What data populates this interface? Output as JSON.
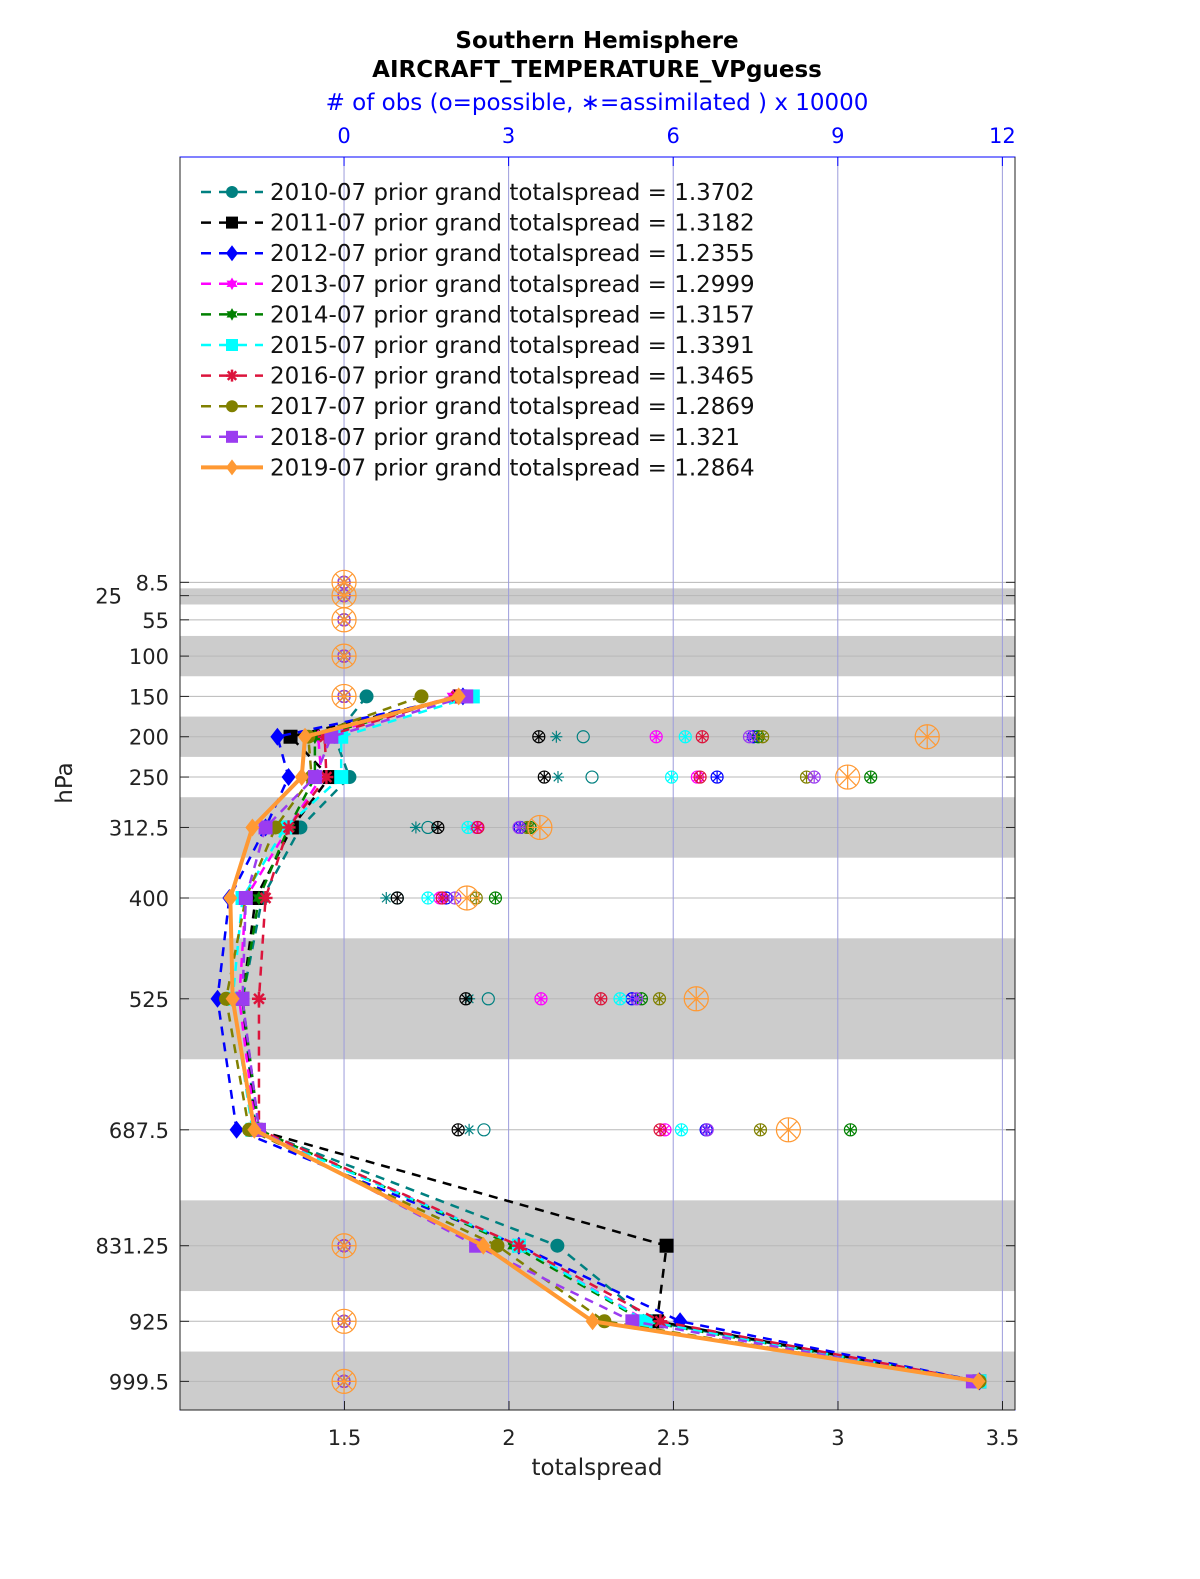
{
  "chart_data": {
    "type": "line",
    "title": "Southern Hemisphere",
    "subtitle": "AIRCRAFT_TEMPERATURE_VPguess",
    "top_axis_label": "# of obs (o=possible, ∗=assimilated ) x 10000",
    "xlabel": "totalspread",
    "ylabel": "hPa",
    "xlim": [
      1.0,
      3.538
    ],
    "top_xlim": [
      -2.99,
      12.23
    ],
    "ylim": [
      -519,
      1035
    ],
    "y_reversed": true,
    "grid": true,
    "legend_placement": "top-left",
    "x_ticks": [
      "1.5",
      "2",
      "2.5",
      "3",
      "3.5"
    ],
    "x_tick_values": [
      1.5,
      2,
      2.5,
      3,
      3.5
    ],
    "top_ticks": [
      "0",
      "3",
      "6",
      "9",
      "12"
    ],
    "top_tick_values": [
      0,
      3,
      6,
      9,
      12
    ],
    "y_levels": [
      8.5,
      25,
      55,
      100,
      150,
      200,
      250,
      312.5,
      400,
      525,
      687.5,
      831.25,
      925,
      999.5
    ],
    "y_tick_labels": [
      "8.5",
      "25",
      "55",
      "100",
      "150",
      "200",
      "250",
      "312.5",
      "400",
      "525",
      "687.5",
      "831.25",
      "925",
      "999.5"
    ],
    "shaded_bands": [
      [
        16,
        36
      ],
      [
        75,
        125
      ],
      [
        175,
        225
      ],
      [
        275,
        350
      ],
      [
        450,
        600
      ],
      [
        775,
        887.5
      ],
      [
        962.5,
        1035
      ]
    ],
    "spread_levels": [
      150,
      200,
      250,
      312.5,
      400,
      525,
      687.5,
      831.25,
      925,
      999.5
    ],
    "series": [
      {
        "name": "2010-07 prior grand totalspread = 1.3702",
        "color": "#008080",
        "marker": "circle",
        "solid": false,
        "values": [
          1.567,
          1.47,
          1.515,
          1.366,
          1.25,
          1.19,
          1.23,
          2.147,
          2.43,
          3.43
        ],
        "obs_possible": [
          0,
          0,
          0,
          0,
          0,
          4.36,
          4.52,
          1.53,
          0.97,
          2.63,
          2.55,
          0,
          0,
          0
        ],
        "obs_assimilated": [
          0,
          0,
          0,
          0,
          0,
          3.87,
          3.9,
          1.31,
          0.77,
          2.28,
          2.28,
          0,
          0,
          0
        ]
      },
      {
        "name": "2011-07 prior grand totalspread = 1.3182",
        "color": "#000000",
        "marker": "square",
        "solid": false,
        "values": [
          1.85,
          1.336,
          1.455,
          1.34,
          1.23,
          1.19,
          1.23,
          2.479,
          2.45,
          3.43
        ],
        "obs_possible": [
          0,
          0,
          0,
          0,
          0,
          3.55,
          3.65,
          1.71,
          0.97,
          2.22,
          2.08,
          0,
          0,
          0
        ],
        "obs_assimilated": [
          0,
          0,
          0,
          0,
          0,
          3.55,
          3.65,
          1.71,
          0.97,
          2.22,
          2.08,
          0,
          0,
          0
        ]
      },
      {
        "name": "2012-07 prior grand totalspread = 1.2355",
        "color": "#0000ff",
        "marker": "diamond",
        "solid": false,
        "values": [
          1.86,
          1.296,
          1.33,
          1.26,
          1.15,
          1.114,
          1.172,
          2.03,
          2.52,
          3.43
        ],
        "obs_possible": [
          0,
          0,
          0,
          0,
          0,
          7.46,
          6.8,
          3.21,
          1.86,
          5.25,
          6.6,
          0,
          0,
          0
        ],
        "obs_assimilated": [
          0,
          0,
          0,
          0,
          0,
          7.46,
          6.8,
          3.21,
          1.86,
          5.25,
          6.6,
          0,
          0,
          0
        ]
      },
      {
        "name": "2013-07 prior grand totalspread = 1.2999",
        "color": "#ff00ff",
        "marker": "hexagram",
        "solid": false,
        "values": [
          1.83,
          1.42,
          1.43,
          1.33,
          1.2,
          1.18,
          1.23,
          2.03,
          2.42,
          3.43
        ],
        "obs_possible": [
          0,
          0,
          0,
          0,
          0,
          5.69,
          6.44,
          2.42,
          1.75,
          3.59,
          5.85,
          0,
          0,
          0
        ],
        "obs_assimilated": [
          0,
          0,
          0,
          0,
          0,
          5.69,
          6.44,
          2.42,
          1.75,
          3.59,
          5.85,
          0,
          0,
          0
        ]
      },
      {
        "name": "2014-07 prior grand totalspread = 1.3157",
        "color": "#008000",
        "marker": "hexagram",
        "solid": false,
        "values": [
          1.85,
          1.41,
          1.41,
          1.33,
          1.24,
          1.19,
          1.24,
          2.014,
          2.41,
          3.43
        ],
        "obs_possible": [
          0,
          0,
          0,
          0,
          0,
          7.55,
          9.6,
          3.39,
          2.76,
          5.42,
          9.23,
          0,
          0,
          0
        ],
        "obs_assimilated": [
          0,
          0,
          0,
          0,
          0,
          7.55,
          9.6,
          3.39,
          2.76,
          5.42,
          9.23,
          0,
          0,
          0
        ]
      },
      {
        "name": "2015-07 prior grand totalspread = 1.3391",
        "color": "#00ffff",
        "marker": "square",
        "solid": false,
        "values": [
          1.89,
          1.49,
          1.49,
          1.32,
          1.19,
          1.16,
          1.22,
          2.03,
          2.415,
          3.43
        ],
        "obs_possible": [
          0,
          0,
          0,
          0,
          0,
          6.22,
          5.97,
          2.26,
          1.53,
          5.03,
          6.15,
          0,
          0,
          0
        ],
        "obs_assimilated": [
          0,
          0,
          0,
          0,
          0,
          6.22,
          5.97,
          2.26,
          1.53,
          5.03,
          6.15,
          0,
          0,
          0
        ]
      },
      {
        "name": "2016-07 prior grand totalspread = 1.3465",
        "color": "#dc143c",
        "marker": "asterisk",
        "solid": false,
        "values": [
          1.84,
          1.44,
          1.445,
          1.33,
          1.26,
          1.24,
          1.24,
          2.03,
          2.46,
          3.43
        ],
        "obs_possible": [
          0,
          0,
          0,
          0,
          0,
          6.53,
          6.49,
          2.44,
          1.79,
          4.68,
          5.76,
          0,
          0,
          0
        ],
        "obs_assimilated": [
          0,
          0,
          0,
          0,
          0,
          6.53,
          6.49,
          2.44,
          1.79,
          4.68,
          5.76,
          0,
          0,
          0
        ]
      },
      {
        "name": "2017-07 prior grand totalspread = 1.2869",
        "color": "#808000",
        "marker": "circle",
        "solid": false,
        "values": [
          1.734,
          1.39,
          1.4,
          1.29,
          1.2,
          1.14,
          1.21,
          1.965,
          2.29,
          3.43
        ],
        "obs_possible": [
          0,
          0,
          0,
          0,
          0,
          7.63,
          8.43,
          3.34,
          2.41,
          5.75,
          7.59,
          0,
          0,
          0
        ],
        "obs_assimilated": [
          0,
          0,
          0,
          0,
          0,
          7.63,
          8.43,
          3.34,
          2.41,
          5.75,
          7.59,
          0,
          0,
          0
        ]
      },
      {
        "name": "2018-07 prior grand totalspread = 1.321",
        "color": "#9b3cf0",
        "marker": "square",
        "solid": false,
        "values": [
          1.87,
          1.46,
          1.41,
          1.26,
          1.2,
          1.19,
          1.24,
          1.9,
          2.375,
          3.41
        ],
        "obs_possible": [
          0,
          0,
          0,
          0,
          0,
          7.39,
          8.57,
          3.19,
          2.02,
          5.33,
          6.62,
          0,
          0,
          0
        ],
        "obs_assimilated": [
          0,
          0,
          0,
          0,
          0,
          7.39,
          8.57,
          3.19,
          2.02,
          5.33,
          6.62,
          0,
          0,
          0
        ]
      },
      {
        "name": "2019-07 prior grand totalspread = 1.2864",
        "color": "#ff9933",
        "marker": "diamond",
        "solid": true,
        "values": [
          1.847,
          1.38,
          1.37,
          1.22,
          1.153,
          1.16,
          1.226,
          1.922,
          2.254,
          3.427
        ],
        "obs_possible": [
          0,
          0,
          0,
          0,
          0,
          10.63,
          9.18,
          3.57,
          2.24,
          6.42,
          8.1,
          0,
          0,
          0
        ],
        "obs_assimilated": [
          0,
          0,
          0,
          0,
          0,
          10.63,
          9.18,
          3.57,
          2.24,
          6.42,
          8.1,
          0,
          0,
          0
        ]
      }
    ]
  }
}
